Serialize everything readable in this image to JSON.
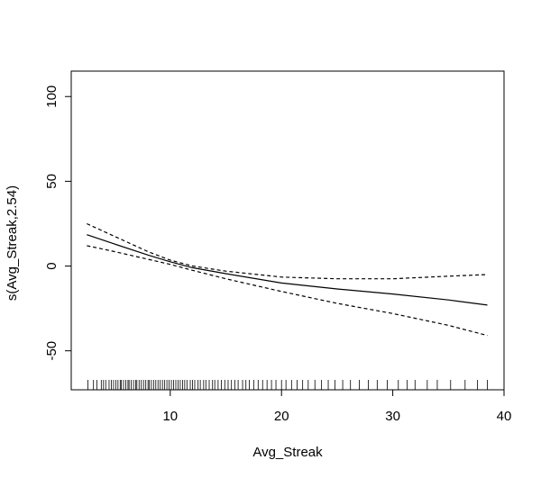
{
  "chart_data": {
    "type": "line",
    "title": "",
    "xlabel": "Avg_Streak",
    "ylabel": "s(Avg_Streak,2.54)",
    "xlim": [
      1.1,
      40
    ],
    "ylim": [
      -73,
      115
    ],
    "x_ticks": [
      10,
      20,
      30,
      40
    ],
    "y_ticks": [
      -50,
      0,
      50,
      100
    ],
    "grid": false,
    "legend": "none",
    "series": [
      {
        "style": "solid",
        "x": [
          2.5,
          5,
          8,
          10,
          12,
          15,
          20,
          25,
          30,
          35,
          38.5
        ],
        "y": [
          18.5,
          13,
          6.5,
          2.5,
          -1,
          -4.5,
          -10,
          -13.5,
          -16.5,
          -20,
          -23
        ]
      },
      {
        "style": "dashed",
        "x": [
          2.5,
          5,
          8,
          10,
          12,
          15,
          20,
          25,
          30,
          35,
          38.5
        ],
        "y": [
          25,
          17.5,
          8.5,
          3.5,
          0,
          -3,
          -6.5,
          -7.5,
          -7.5,
          -6,
          -5
        ]
      },
      {
        "style": "dashed",
        "x": [
          2.5,
          5,
          8,
          10,
          12,
          15,
          20,
          25,
          30,
          35,
          38.5
        ],
        "y": [
          12,
          8.5,
          4,
          1,
          -2.5,
          -7.5,
          -15,
          -22,
          -28,
          -35,
          -41
        ]
      }
    ],
    "rug": [
      2.6,
      3.1,
      3.4,
      3.8,
      4.0,
      4.2,
      4.5,
      4.7,
      4.9,
      5.1,
      5.3,
      5.5,
      5.6,
      5.8,
      6.0,
      6.2,
      6.3,
      6.5,
      6.7,
      6.9,
      7.0,
      7.2,
      7.4,
      7.6,
      7.8,
      8.0,
      8.1,
      8.3,
      8.5,
      8.7,
      8.9,
      9.1,
      9.3,
      9.5,
      9.7,
      9.9,
      10.1,
      10.3,
      10.5,
      10.7,
      10.9,
      11.1,
      11.3,
      11.5,
      11.8,
      12.0,
      12.2,
      12.5,
      12.7,
      13.0,
      13.2,
      13.5,
      13.8,
      14.0,
      14.3,
      14.6,
      14.9,
      15.2,
      15.5,
      15.8,
      16.1,
      16.5,
      16.8,
      17.1,
      17.5,
      17.9,
      18.3,
      18.7,
      19.1,
      19.5,
      20.0,
      20.4,
      20.9,
      21.4,
      21.9,
      22.4,
      23.0,
      23.6,
      24.2,
      24.8,
      25.5,
      26.2,
      27.0,
      27.8,
      28.6,
      29.5,
      30.5,
      31.3,
      32.0,
      33.1,
      34.0,
      35.2,
      36.5,
      37.6,
      38.5
    ]
  }
}
